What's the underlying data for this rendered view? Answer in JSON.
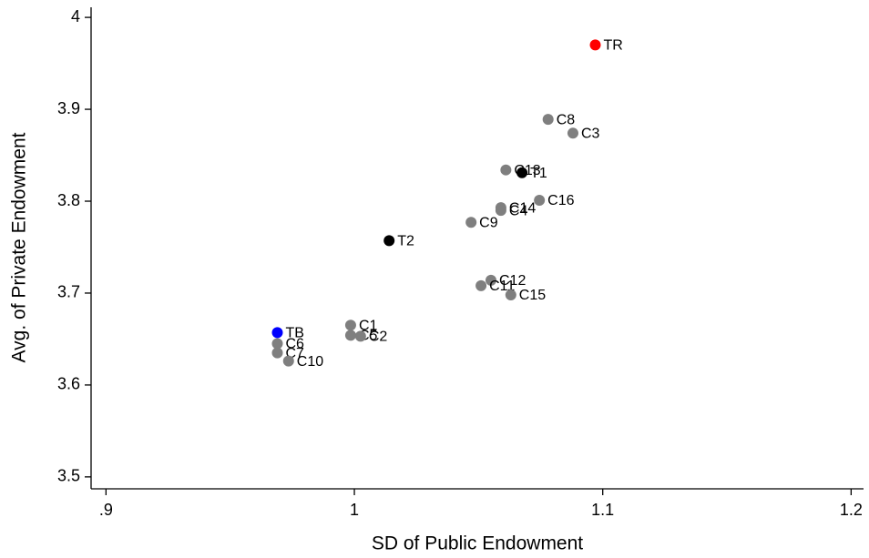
{
  "chart_data": {
    "type": "scatter",
    "xlabel": "SD of Public Endowment",
    "ylabel": "Avg. of Private Endowment",
    "labels": [
      "TR",
      "C8",
      "C3",
      "C13",
      "T1",
      "C16",
      "C14",
      "C4",
      "C9",
      "T2",
      "C12",
      "C11",
      "C15",
      "C1",
      "C5",
      "C2",
      "TB",
      "C6",
      "C7",
      "C10"
    ],
    "x": [
      1.097,
      1.078,
      1.088,
      1.061,
      1.0675,
      1.0745,
      1.059,
      1.059,
      1.047,
      1.014,
      1.055,
      1.051,
      1.063,
      0.9985,
      0.9985,
      1.0025,
      0.969,
      0.969,
      0.969,
      0.9735
    ],
    "values": [
      3.97,
      3.889,
      3.874,
      3.834,
      3.831,
      3.801,
      3.793,
      3.79,
      3.777,
      3.757,
      3.714,
      3.708,
      3.698,
      3.665,
      3.654,
      3.653,
      3.657,
      3.645,
      3.635,
      3.626
    ],
    "colors": [
      "#ff0000",
      "#7f7f7f",
      "#7f7f7f",
      "#7f7f7f",
      "#000000",
      "#7f7f7f",
      "#7f7f7f",
      "#7f7f7f",
      "#7f7f7f",
      "#000000",
      "#7f7f7f",
      "#7f7f7f",
      "#7f7f7f",
      "#7f7f7f",
      "#7f7f7f",
      "#7f7f7f",
      "#0000ff",
      "#7f7f7f",
      "#7f7f7f",
      "#7f7f7f"
    ],
    "xlim": [
      0.894,
      1.205
    ],
    "ylim": [
      3.487,
      4.011
    ],
    "xticks": [
      {
        "value": 0.9,
        "label": ".9"
      },
      1,
      1.1,
      1.2
    ],
    "yticks": [
      3.5,
      3.6,
      3.7,
      3.8,
      3.9,
      4
    ]
  }
}
